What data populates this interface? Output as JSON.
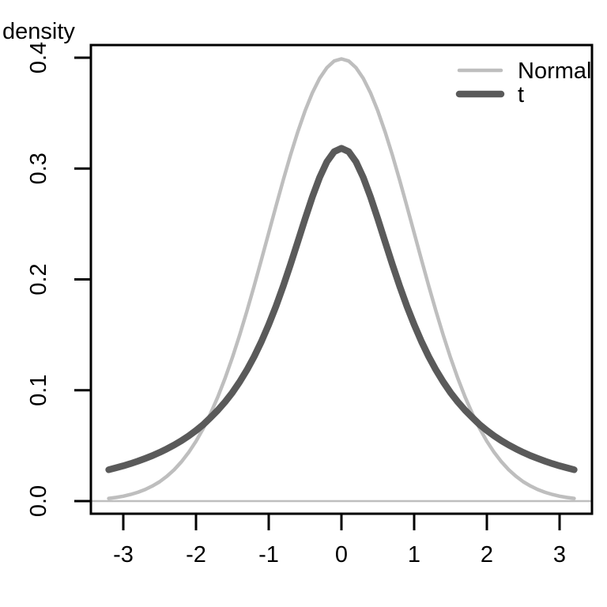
{
  "chart_data": {
    "type": "line",
    "title": "",
    "xlabel": "",
    "ylabel": "density",
    "xlim": [
      -3.45,
      3.45
    ],
    "ylim": [
      -0.0114,
      0.4114
    ],
    "grid": false,
    "axis_color": "#000000",
    "zero_line": {
      "y": 0,
      "color": "#bebebe"
    },
    "x_ticks": {
      "values": [
        -3,
        -2,
        -1,
        0,
        1,
        2,
        3
      ],
      "labels": [
        "-3",
        "-2",
        "-1",
        "0",
        "1",
        "2",
        "3"
      ]
    },
    "y_ticks": {
      "values": [
        0.0,
        0.1,
        0.2,
        0.3,
        0.4
      ],
      "labels": [
        "0.0",
        "0.1",
        "0.2",
        "0.3",
        "0.4"
      ]
    },
    "legend": {
      "position": "topright",
      "boxed": false,
      "entries": [
        {
          "label": "Normal",
          "color": "#bebebe",
          "line_width": 4.5
        },
        {
          "label": "t",
          "color": "#5a5a5a",
          "line_width": 8.5
        }
      ]
    },
    "series": [
      {
        "name": "Normal",
        "color": "#bebebe",
        "line_width": 4.5,
        "x": [
          -3.2,
          -3.1,
          -3,
          -2.9,
          -2.8,
          -2.7,
          -2.6,
          -2.5,
          -2.4,
          -2.3,
          -2.2,
          -2.1,
          -2,
          -1.9,
          -1.8,
          -1.7,
          -1.6,
          -1.5,
          -1.4,
          -1.3,
          -1.2,
          -1.1,
          -1,
          -0.9,
          -0.8,
          -0.7,
          -0.6,
          -0.5,
          -0.4,
          -0.3,
          -0.2,
          -0.1,
          0,
          0.1,
          0.2,
          0.3,
          0.4,
          0.5,
          0.6,
          0.7,
          0.8,
          0.9,
          1,
          1.1,
          1.2,
          1.3,
          1.4,
          1.5,
          1.6,
          1.7,
          1.8,
          1.9,
          2,
          2.1,
          2.2,
          2.3,
          2.4,
          2.5,
          2.6,
          2.7,
          2.8,
          2.9,
          3,
          3.1,
          3.2
        ],
        "y": [
          0.0024,
          0.0033,
          0.0044,
          0.006,
          0.0079,
          0.0104,
          0.0136,
          0.0175,
          0.0224,
          0.0283,
          0.0355,
          0.044,
          0.054,
          0.0656,
          0.079,
          0.094,
          0.1109,
          0.1295,
          0.1497,
          0.1714,
          0.1942,
          0.2179,
          0.242,
          0.2661,
          0.2897,
          0.3123,
          0.3332,
          0.3521,
          0.3683,
          0.3814,
          0.391,
          0.397,
          0.3989,
          0.397,
          0.391,
          0.3814,
          0.3683,
          0.3521,
          0.3332,
          0.3123,
          0.2897,
          0.2661,
          0.242,
          0.2179,
          0.1942,
          0.1714,
          0.1497,
          0.1295,
          0.1109,
          0.094,
          0.079,
          0.0656,
          0.054,
          0.044,
          0.0355,
          0.0283,
          0.0224,
          0.0175,
          0.0136,
          0.0104,
          0.0079,
          0.006,
          0.0044,
          0.0033,
          0.0024
        ]
      },
      {
        "name": "t",
        "color": "#5a5a5a",
        "line_width": 8.5,
        "x": [
          -3.2,
          -3.1,
          -3,
          -2.9,
          -2.8,
          -2.7,
          -2.6,
          -2.5,
          -2.4,
          -2.3,
          -2.2,
          -2.1,
          -2,
          -1.9,
          -1.8,
          -1.7,
          -1.6,
          -1.5,
          -1.4,
          -1.3,
          -1.2,
          -1.1,
          -1,
          -0.9,
          -0.8,
          -0.7,
          -0.6,
          -0.5,
          -0.4,
          -0.3,
          -0.2,
          -0.1,
          0,
          0.1,
          0.2,
          0.3,
          0.4,
          0.5,
          0.6,
          0.7,
          0.8,
          0.9,
          1,
          1.1,
          1.2,
          1.3,
          1.4,
          1.5,
          1.6,
          1.7,
          1.8,
          1.9,
          2,
          2.1,
          2.2,
          2.3,
          2.4,
          2.5,
          2.6,
          2.7,
          2.8,
          2.9,
          3,
          3.1,
          3.2
        ],
        "y": [
          0.0283,
          0.03,
          0.0318,
          0.0338,
          0.036,
          0.0384,
          0.041,
          0.0439,
          0.0471,
          0.0506,
          0.0545,
          0.0588,
          0.0637,
          0.069,
          0.0754,
          0.082,
          0.0895,
          0.0979,
          0.1075,
          0.1183,
          0.1304,
          0.144,
          0.1592,
          0.1758,
          0.1941,
          0.2136,
          0.234,
          0.2546,
          0.2744,
          0.292,
          0.3061,
          0.3152,
          0.3183,
          0.3152,
          0.3061,
          0.292,
          0.2744,
          0.2546,
          0.234,
          0.2136,
          0.1941,
          0.1758,
          0.1592,
          0.144,
          0.1304,
          0.1183,
          0.1075,
          0.0979,
          0.0895,
          0.082,
          0.0754,
          0.069,
          0.0637,
          0.0588,
          0.0545,
          0.0506,
          0.0471,
          0.0439,
          0.041,
          0.0384,
          0.036,
          0.0338,
          0.0318,
          0.03,
          0.0283
        ]
      }
    ]
  }
}
